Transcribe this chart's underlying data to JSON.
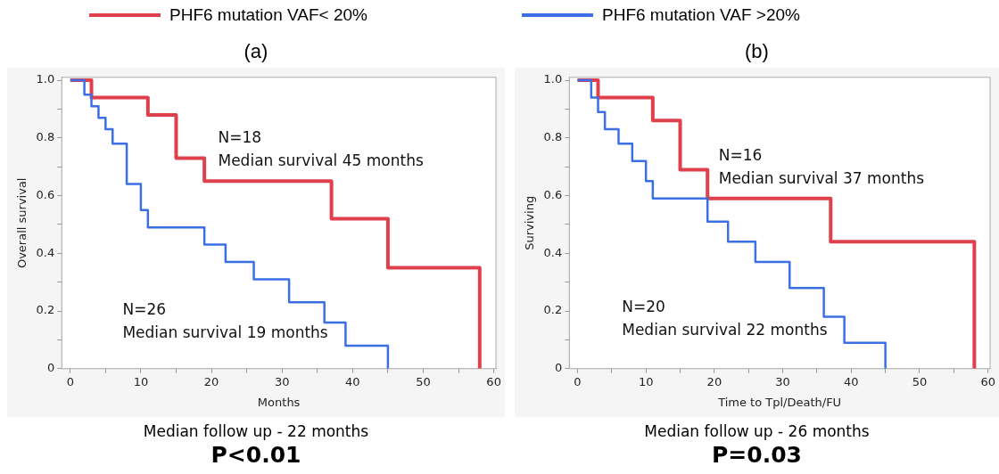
{
  "chart_data": [
    {
      "type": "step",
      "title": "(a)",
      "xlabel": "Months",
      "ylabel": "Overall survival",
      "xlim": [
        -1.2,
        60.3
      ],
      "ylim": [
        0,
        1.01
      ],
      "xticks": [
        0,
        {
          "value": 5,
          "label": null
        },
        10,
        {
          "value": 15,
          "label": null
        },
        20,
        {
          "value": 25,
          "label": null
        },
        30,
        {
          "value": 35,
          "label": null
        },
        40,
        {
          "value": 45,
          "label": null
        },
        50,
        {
          "value": 55,
          "label": null
        },
        60
      ],
      "yticks": [
        0,
        {
          "value": 0.1,
          "label": null
        },
        0.2,
        {
          "value": 0.3,
          "label": null
        },
        0.4,
        {
          "value": 0.5,
          "label": null
        },
        0.6,
        {
          "value": 0.7,
          "label": null
        },
        0.8,
        {
          "value": 0.9,
          "label": null
        },
        {
          "value": 1,
          "label": "1.0"
        }
      ],
      "legend": "top",
      "marker": "none",
      "line_style": "solid",
      "series": [
        {
          "name": "PHF6 mutation VAF< 20%",
          "color": "#e0404c",
          "x": [
            0,
            3,
            11,
            15,
            19,
            37,
            45,
            58
          ],
          "values": [
            1,
            0.94,
            0.88,
            0.73,
            0.65,
            0.52,
            0.35,
            0
          ]
        },
        {
          "name": "PHF6 mutation VAF >20%",
          "color": "#3b6fe6",
          "x": [
            0,
            2,
            3,
            4,
            5,
            6,
            8,
            10,
            11,
            19,
            22,
            26,
            31,
            36,
            39,
            45
          ],
          "values": [
            1,
            0.95,
            0.91,
            0.87,
            0.83,
            0.78,
            0.64,
            0.55,
            0.49,
            0.43,
            0.37,
            0.31,
            0.23,
            0.16,
            0.08,
            0
          ]
        }
      ],
      "annotations": [
        "N=18",
        "Median survival 45 months",
        "N=26",
        "Median survival 19 months",
        "Median follow up - 22 months",
        "P<0.01"
      ]
    },
    {
      "type": "step",
      "title": "(b)",
      "xlabel": "Time to Tpl/Death/FU",
      "ylabel": "Surviving",
      "xlim": [
        -1.2,
        60.3
      ],
      "ylim": [
        0,
        1.01
      ],
      "xticks": [
        0,
        {
          "value": 5,
          "label": null
        },
        10,
        {
          "value": 15,
          "label": null
        },
        20,
        {
          "value": 25,
          "label": null
        },
        30,
        {
          "value": 35,
          "label": null
        },
        40,
        {
          "value": 45,
          "label": null
        },
        50,
        {
          "value": 55,
          "label": null
        },
        60
      ],
      "yticks": [
        0,
        {
          "value": 0.1,
          "label": null
        },
        0.2,
        {
          "value": 0.3,
          "label": null
        },
        0.4,
        {
          "value": 0.5,
          "label": null
        },
        0.6,
        {
          "value": 0.7,
          "label": null
        },
        0.8,
        {
          "value": 0.9,
          "label": null
        },
        {
          "value": 1,
          "label": "1.0"
        }
      ],
      "marker": "none",
      "line_style": "solid",
      "series": [
        {
          "color": "#e0404c",
          "x": [
            0,
            3,
            11,
            15,
            19,
            37,
            58
          ],
          "values": [
            1,
            0.94,
            0.86,
            0.69,
            0.59,
            0.44,
            0
          ]
        },
        {
          "color": "#3b6fe6",
          "x": [
            0,
            2,
            3,
            4,
            6,
            8,
            10,
            11,
            19,
            22,
            26,
            31,
            36,
            39,
            45
          ],
          "values": [
            1,
            0.94,
            0.89,
            0.83,
            0.78,
            0.72,
            0.65,
            0.59,
            0.51,
            0.44,
            0.37,
            0.28,
            0.18,
            0.09,
            0
          ]
        }
      ],
      "annotations": [
        "N=16",
        "Median survival 37 months",
        "N=20",
        "Median survival 22 months",
        "Median follow up - 26 months",
        "P=0.03"
      ]
    }
  ]
}
